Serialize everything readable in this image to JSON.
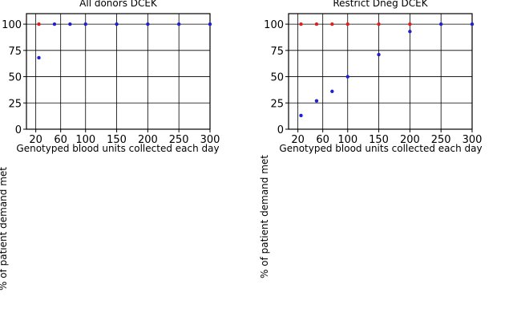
{
  "chart_data": [
    {
      "type": "scatter",
      "title": "All donors DCEK",
      "xlabel": "Genotyped blood units collected each day",
      "ylabel": "% of patient demand met",
      "xticks": [
        20,
        60,
        100,
        150,
        200,
        250,
        300
      ],
      "yticks": [
        0,
        25,
        50,
        75,
        100
      ],
      "xlim": [
        5,
        300
      ],
      "ylim": [
        0,
        110
      ],
      "grid": true,
      "series": [
        {
          "color": "#e02020",
          "x": [
            25
          ],
          "y": [
            100
          ]
        },
        {
          "color": "#2020d0",
          "x": [
            25,
            50,
            75,
            100,
            150,
            200,
            250,
            300
          ],
          "y": [
            68,
            100,
            100,
            100,
            100,
            100,
            100,
            100
          ]
        }
      ]
    },
    {
      "type": "scatter",
      "title": "Restrict Dneg DCEK",
      "xlabel": "Genotyped blood units collected each day",
      "ylabel": "% of patient demand met",
      "xticks": [
        20,
        60,
        100,
        150,
        200,
        250,
        300
      ],
      "yticks": [
        0,
        25,
        50,
        75,
        100
      ],
      "xlim": [
        5,
        300
      ],
      "ylim": [
        0,
        110
      ],
      "grid": true,
      "series": [
        {
          "color": "#e02020",
          "x": [
            25,
            50,
            75,
            100,
            150,
            200
          ],
          "y": [
            100,
            100,
            100,
            100,
            100,
            100
          ]
        },
        {
          "color": "#2020d0",
          "x": [
            25,
            50,
            75,
            100,
            150,
            200,
            250,
            300
          ],
          "y": [
            13,
            27,
            36,
            50,
            71,
            93,
            100,
            100
          ]
        }
      ]
    }
  ]
}
